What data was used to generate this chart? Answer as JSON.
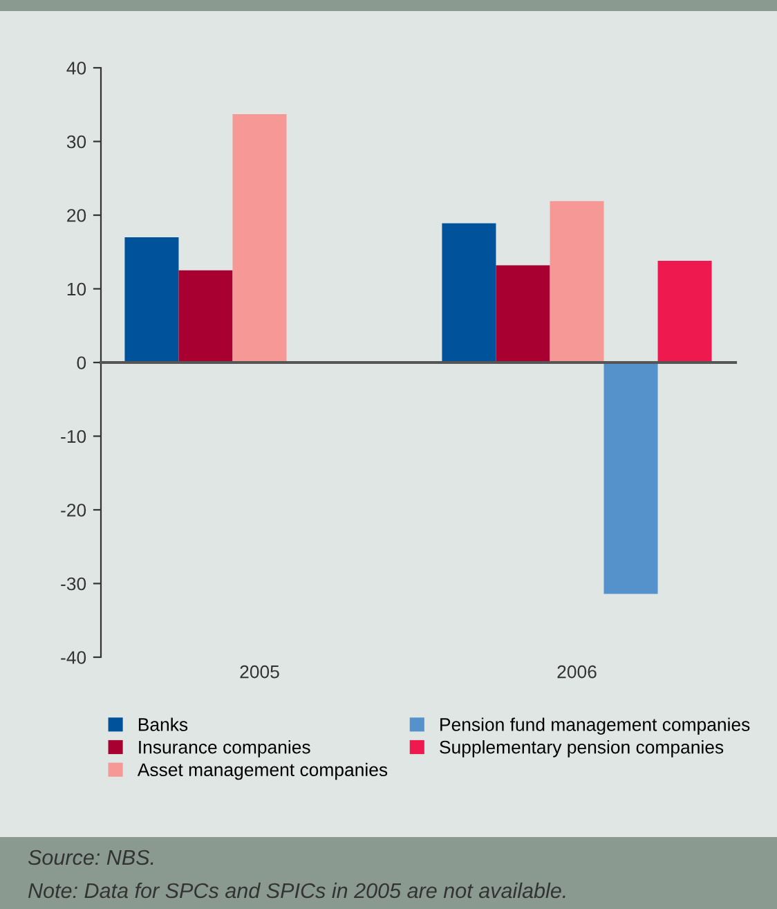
{
  "chart_data": {
    "type": "bar",
    "categories": [
      "2005",
      "2006"
    ],
    "series": [
      {
        "name": "Banks",
        "color": "#00529b",
        "values": [
          17.0,
          18.9
        ]
      },
      {
        "name": "Insurance companies",
        "color": "#a80030",
        "values": [
          12.5,
          13.2
        ]
      },
      {
        "name": "Asset management companies",
        "color": "#f59896",
        "values": [
          33.7,
          21.9
        ]
      },
      {
        "name": "Pension fund management companies",
        "color": "#5591cb",
        "values": [
          null,
          -31.4
        ]
      },
      {
        "name": "Supplementary pension companies",
        "color": "#ee1a4f",
        "values": [
          null,
          13.8
        ]
      }
    ],
    "ylim": [
      -40,
      40
    ],
    "yticks": [
      -40,
      -30,
      -20,
      -10,
      0,
      10,
      20,
      30,
      40
    ],
    "legend": "bottom",
    "annotations": [
      "Source: NBS.",
      "Note: Data for SPCs and SPICs in 2005 are not available."
    ]
  }
}
